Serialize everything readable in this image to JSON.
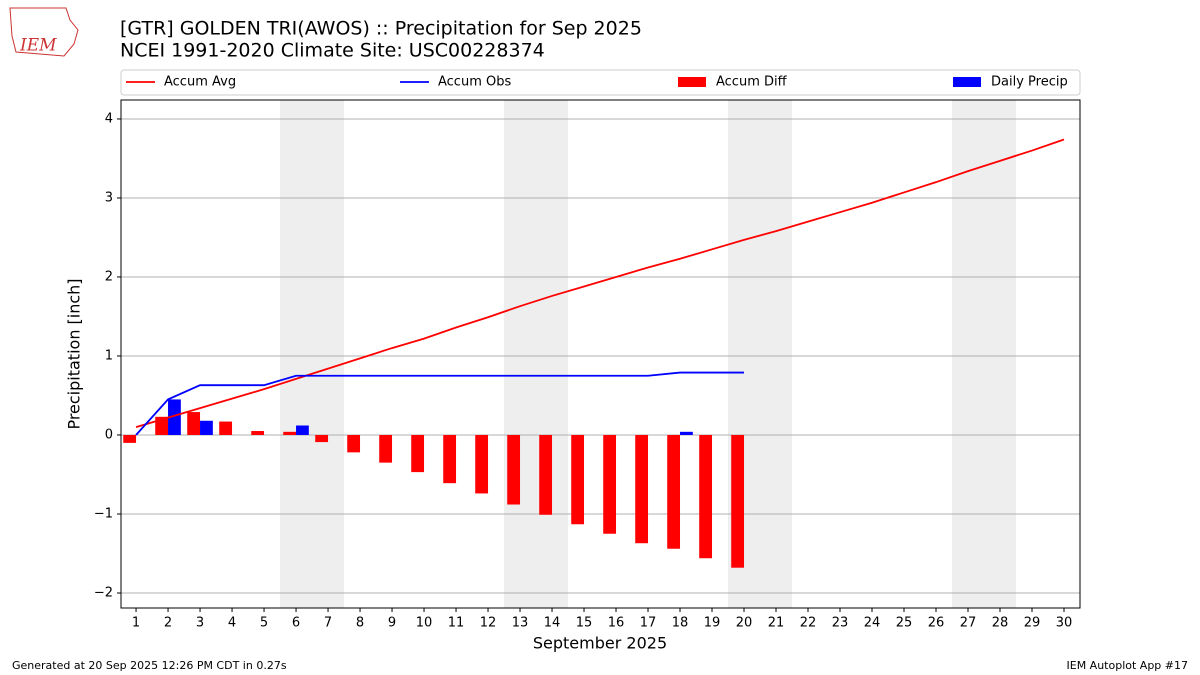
{
  "logo_text": "IEM",
  "footer_left": "Generated at 20 Sep 2025 12:26 PM CDT in 0.27s",
  "footer_right": "IEM Autoplot App #17",
  "chart_data": {
    "type": "bar",
    "title": "[GTR] GOLDEN TRI(AWOS) :: Precipitation for Sep 2025",
    "subtitle": "NCEI 1991-2020 Climate Site: USC00228374",
    "xlabel": "September 2025",
    "ylabel": "Precipitation [inch]",
    "x": [
      1,
      2,
      3,
      4,
      5,
      6,
      7,
      8,
      9,
      10,
      11,
      12,
      13,
      14,
      15,
      16,
      17,
      18,
      19,
      20,
      21,
      22,
      23,
      24,
      25,
      26,
      27,
      28,
      29,
      30
    ],
    "xlim": [
      0.53,
      30.5
    ],
    "xticks": [
      1,
      2,
      3,
      4,
      5,
      6,
      7,
      8,
      9,
      10,
      11,
      12,
      13,
      14,
      15,
      16,
      17,
      18,
      19,
      20,
      21,
      22,
      23,
      24,
      25,
      26,
      27,
      28,
      29,
      30
    ],
    "ylim": [
      -2.19,
      4.24
    ],
    "yticks": [
      {
        "value": -2,
        "label": "−2"
      },
      {
        "value": -1,
        "label": "−1"
      },
      0,
      1,
      2,
      3,
      4
    ],
    "grid": true,
    "legend": "top",
    "series": [
      {
        "name": "Accum Avg",
        "type": "line",
        "color": "#ff0000",
        "values": [
          0.1,
          0.22,
          0.34,
          0.46,
          0.58,
          0.71,
          0.84,
          0.97,
          1.1,
          1.22,
          1.36,
          1.49,
          1.63,
          1.76,
          1.88,
          2.0,
          2.12,
          2.23,
          2.35,
          2.47,
          2.58,
          2.7,
          2.82,
          2.94,
          3.07,
          3.2,
          3.34,
          3.47,
          3.6,
          3.74
        ]
      },
      {
        "name": "Accum Obs",
        "type": "line",
        "color": "#0000ff",
        "values": [
          0.0,
          0.45,
          0.63,
          0.63,
          0.63,
          0.75,
          0.75,
          0.75,
          0.75,
          0.75,
          0.75,
          0.75,
          0.75,
          0.75,
          0.75,
          0.75,
          0.75,
          0.79,
          0.79,
          0.79,
          null,
          null,
          null,
          null,
          null,
          null,
          null,
          null,
          null,
          null
        ]
      },
      {
        "name": "Accum Diff",
        "type": "bar",
        "color": "#ff0000",
        "values": [
          -0.1,
          0.23,
          0.29,
          0.17,
          0.05,
          0.04,
          -0.09,
          -0.22,
          -0.35,
          -0.47,
          -0.61,
          -0.74,
          -0.88,
          -1.01,
          -1.13,
          -1.25,
          -1.37,
          -1.44,
          -1.56,
          -1.68,
          null,
          null,
          null,
          null,
          null,
          null,
          null,
          null,
          null,
          null
        ]
      },
      {
        "name": "Daily Precip",
        "type": "bar",
        "color": "#0000ff",
        "values": [
          0,
          0.45,
          0.18,
          0,
          0,
          0.12,
          0,
          0,
          0,
          0,
          0,
          0,
          0,
          0,
          0,
          0,
          0,
          0.04,
          0,
          0,
          null,
          null,
          null,
          null,
          null,
          null,
          null,
          null,
          null,
          null
        ]
      }
    ]
  }
}
